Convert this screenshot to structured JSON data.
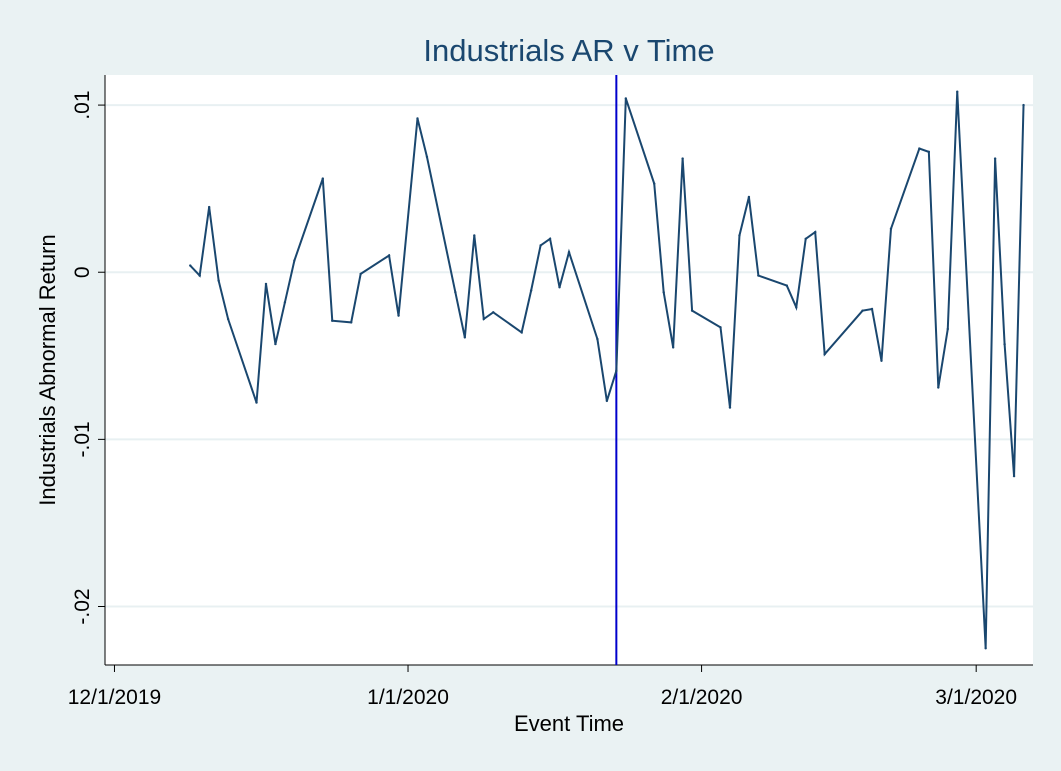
{
  "chart_data": {
    "type": "line",
    "title": "Industrials AR v Time",
    "xlabel": "Event Time",
    "ylabel": "Industrials Abnormal Return",
    "x_tick_labels": [
      "12/1/2019",
      "1/1/2020",
      "2/1/2020",
      "3/1/2020"
    ],
    "x_tick_dates": [
      "2019-12-01",
      "2020-01-01",
      "2020-02-01",
      "2020-03-01"
    ],
    "y_tick_labels": [
      ".01",
      "0",
      "-.01",
      "-.02"
    ],
    "y_ticks": [
      0.01,
      0,
      -0.01,
      -0.02
    ],
    "xlim": [
      "2019-11-30",
      "2020-03-07"
    ],
    "ylim": [
      -0.0235,
      0.0118
    ],
    "grid": "horizontal",
    "reference_line": {
      "x": "2020-01-23",
      "color": "#0000cc"
    },
    "series": [
      {
        "color": "#1a476f",
        "points": [
          {
            "x": "2019-12-09",
            "y": 0.0004
          },
          {
            "x": "2019-12-10",
            "y": -0.0002
          },
          {
            "x": "2019-12-11",
            "y": 0.0039
          },
          {
            "x": "2019-12-12",
            "y": -0.0005
          },
          {
            "x": "2019-12-13",
            "y": -0.0028
          },
          {
            "x": "2019-12-16",
            "y": -0.0078
          },
          {
            "x": "2019-12-17",
            "y": -0.0007
          },
          {
            "x": "2019-12-18",
            "y": -0.0043
          },
          {
            "x": "2019-12-19",
            "y": -0.0018
          },
          {
            "x": "2019-12-20",
            "y": 0.0007
          },
          {
            "x": "2019-12-23",
            "y": 0.0056
          },
          {
            "x": "2019-12-24",
            "y": -0.0029
          },
          {
            "x": "2019-12-26",
            "y": -0.003
          },
          {
            "x": "2019-12-27",
            "y": -0.0001
          },
          {
            "x": "2019-12-30",
            "y": 0.001
          },
          {
            "x": "2019-12-31",
            "y": -0.0026
          },
          {
            "x": "2020-01-02",
            "y": 0.0092
          },
          {
            "x": "2020-01-03",
            "y": 0.0069
          },
          {
            "x": "2020-01-06",
            "y": -0.0012
          },
          {
            "x": "2020-01-07",
            "y": -0.0039
          },
          {
            "x": "2020-01-08",
            "y": 0.0022
          },
          {
            "x": "2020-01-09",
            "y": -0.0028
          },
          {
            "x": "2020-01-10",
            "y": -0.0024
          },
          {
            "x": "2020-01-13",
            "y": -0.0036
          },
          {
            "x": "2020-01-14",
            "y": -0.0011
          },
          {
            "x": "2020-01-15",
            "y": 0.0016
          },
          {
            "x": "2020-01-16",
            "y": 0.002
          },
          {
            "x": "2020-01-17",
            "y": -0.0009
          },
          {
            "x": "2020-01-18",
            "y": 0.0012
          },
          {
            "x": "2020-01-21",
            "y": -0.004
          },
          {
            "x": "2020-01-22",
            "y": -0.0077
          },
          {
            "x": "2020-01-23",
            "y": -0.0059
          },
          {
            "x": "2020-01-24",
            "y": 0.0104
          },
          {
            "x": "2020-01-27",
            "y": 0.0053
          },
          {
            "x": "2020-01-28",
            "y": -0.0012
          },
          {
            "x": "2020-01-29",
            "y": -0.0045
          },
          {
            "x": "2020-01-30",
            "y": 0.0068
          },
          {
            "x": "2020-01-31",
            "y": -0.0023
          },
          {
            "x": "2020-02-03",
            "y": -0.0033
          },
          {
            "x": "2020-02-04",
            "y": -0.0081
          },
          {
            "x": "2020-02-05",
            "y": 0.0022
          },
          {
            "x": "2020-02-06",
            "y": 0.0045
          },
          {
            "x": "2020-02-07",
            "y": -0.0002
          },
          {
            "x": "2020-02-10",
            "y": -0.0008
          },
          {
            "x": "2020-02-11",
            "y": -0.0021
          },
          {
            "x": "2020-02-12",
            "y": 0.002
          },
          {
            "x": "2020-02-13",
            "y": 0.0024
          },
          {
            "x": "2020-02-14",
            "y": -0.0049
          },
          {
            "x": "2020-02-18",
            "y": -0.0023
          },
          {
            "x": "2020-02-19",
            "y": -0.0022
          },
          {
            "x": "2020-02-20",
            "y": -0.0053
          },
          {
            "x": "2020-02-21",
            "y": 0.0026
          },
          {
            "x": "2020-02-24",
            "y": 0.0074
          },
          {
            "x": "2020-02-25",
            "y": 0.0072
          },
          {
            "x": "2020-02-26",
            "y": -0.0069
          },
          {
            "x": "2020-02-27",
            "y": -0.0034
          },
          {
            "x": "2020-02-28",
            "y": 0.0108
          },
          {
            "x": "2020-03-02",
            "y": -0.0225
          },
          {
            "x": "2020-03-03",
            "y": 0.0068
          },
          {
            "x": "2020-03-04",
            "y": -0.0043
          },
          {
            "x": "2020-03-05",
            "y": -0.0122
          },
          {
            "x": "2020-03-06",
            "y": 0.01
          }
        ]
      }
    ]
  }
}
